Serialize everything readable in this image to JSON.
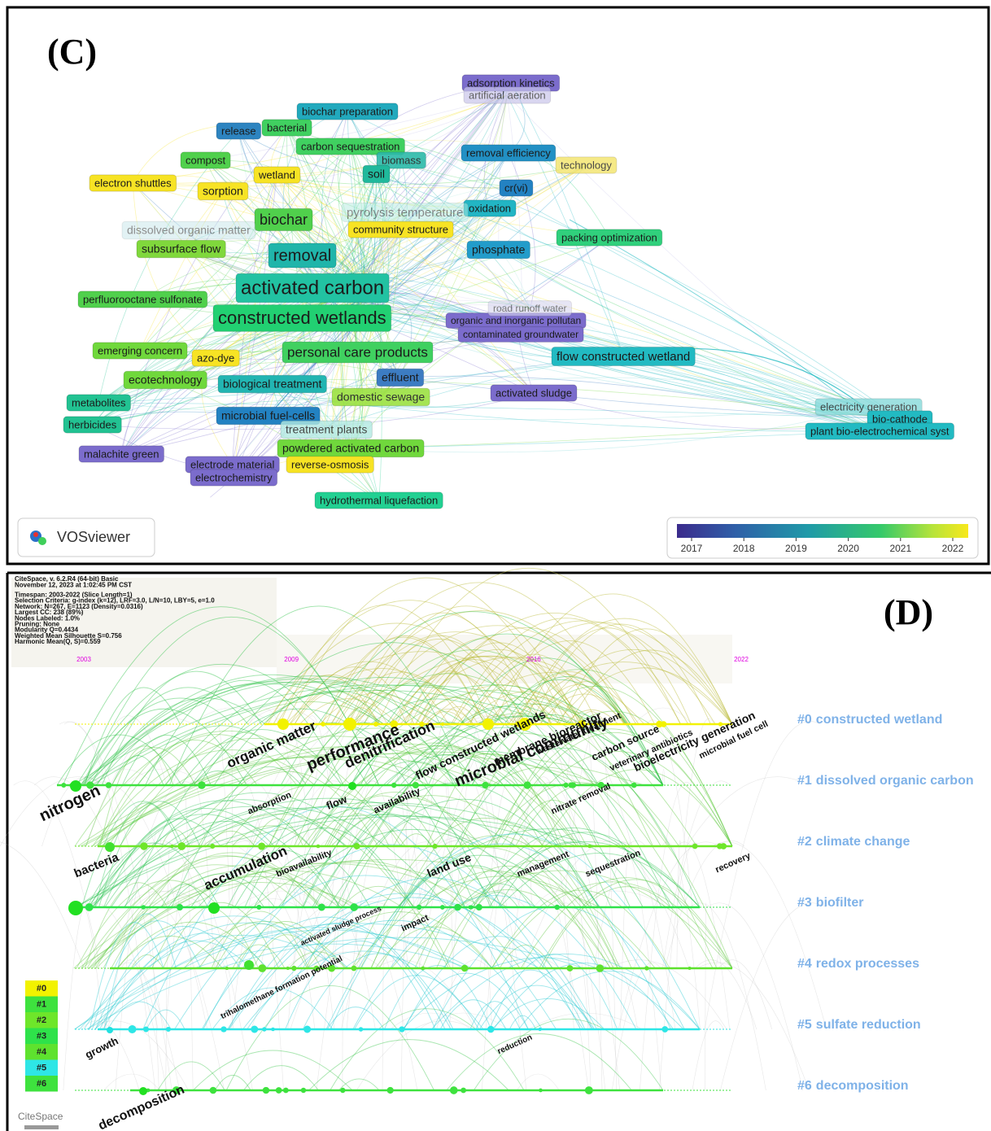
{
  "panel_c": {
    "label": "(C)",
    "logo": "VOSviewer",
    "nodes": [
      {
        "label": "adsorption kinetics",
        "color": "#7b6ccc"
      },
      {
        "label": "artificial aeration",
        "color": "#c9c6ea"
      },
      {
        "label": "biochar preparation",
        "color": "#22a9bd"
      },
      {
        "label": "release",
        "color": "#2d84c0"
      },
      {
        "label": "bacterial",
        "color": "#40d060"
      },
      {
        "label": "carbon sequestration",
        "color": "#40d060"
      },
      {
        "label": "removal efficiency",
        "color": "#2290c4"
      },
      {
        "label": "biomass",
        "color": "#2cbaa9"
      },
      {
        "label": "technology",
        "color": "#f3e46a"
      },
      {
        "label": "compost",
        "color": "#50d04c"
      },
      {
        "label": "wetland",
        "color": "#f7e324"
      },
      {
        "label": "soil",
        "color": "#20b99c"
      },
      {
        "label": "electron shuttles",
        "color": "#f7e324"
      },
      {
        "label": "sorption",
        "color": "#f7e324"
      },
      {
        "label": "cr(vi)",
        "color": "#2382c2"
      },
      {
        "label": "oxidation",
        "color": "#22b5c4"
      },
      {
        "label": "biochar",
        "color": "#50d04c"
      },
      {
        "label": "community structure",
        "color": "#f7e324"
      },
      {
        "label": "subsurface flow",
        "color": "#80d83c"
      },
      {
        "label": "packing optimization",
        "color": "#30d07c"
      },
      {
        "label": "removal",
        "color": "#20b5aa"
      },
      {
        "label": "phosphate",
        "color": "#229cca"
      },
      {
        "label": "activated carbon",
        "color": "#22c2a2"
      },
      {
        "label": "perfluorooctane sulfonate",
        "color": "#50d04c"
      },
      {
        "label": "constructed wetlands",
        "color": "#22d072"
      },
      {
        "label": "organic and inorganic pollutan",
        "color": "#7b6ccc"
      },
      {
        "label": "contaminated groundwater",
        "color": "#7b6ccc"
      },
      {
        "label": "emerging concern",
        "color": "#70d83c"
      },
      {
        "label": "azo-dye",
        "color": "#f7e324"
      },
      {
        "label": "personal care products",
        "color": "#40d060"
      },
      {
        "label": "flow constructed wetland",
        "color": "#22bac2"
      },
      {
        "label": "ecotechnology",
        "color": "#70d83c"
      },
      {
        "label": "biological treatment",
        "color": "#22b5b2"
      },
      {
        "label": "effluent",
        "color": "#3c7cc2"
      },
      {
        "label": "activated sludge",
        "color": "#7b6ccc"
      },
      {
        "label": "domestic sewage",
        "color": "#9ce242"
      },
      {
        "label": "metabolites",
        "color": "#22c292"
      },
      {
        "label": "herbicides",
        "color": "#22c292"
      },
      {
        "label": "microbial fuel-cells",
        "color": "#2382c2"
      },
      {
        "label": "treatment plants",
        "color": "#b2e9e2"
      },
      {
        "label": "electricity generation",
        "color": "#86dada"
      },
      {
        "label": "bio-cathode",
        "color": "#22bac2"
      },
      {
        "label": "plant bio-electrochemical syst",
        "color": "#22bac2"
      },
      {
        "label": "malachite green",
        "color": "#7b6ccc"
      },
      {
        "label": "powdered activated carbon",
        "color": "#70d83c"
      },
      {
        "label": "electrode material",
        "color": "#7b6ccc"
      },
      {
        "label": "reverse-osmosis",
        "color": "#f7e324"
      },
      {
        "label": "electrochemistry",
        "color": "#7b6ccc"
      },
      {
        "label": "hydrothermal liquefaction",
        "color": "#22d092"
      },
      {
        "label": "road runoff water",
        "color": "#d6d4ee"
      },
      {
        "label": "pyrolysis temperature",
        "color": "#b4ebe0"
      },
      {
        "label": "dissolved organic matter",
        "color": "#c6e6ea"
      }
    ],
    "colorbar": {
      "ticks": [
        2017,
        2018,
        2019,
        2020,
        2021,
        2022
      ]
    }
  },
  "panel_d": {
    "label": "(D)",
    "logo": "CiteSpace",
    "info": [
      "CiteSpace, v. 6.2.R4 (64-bit) Basic",
      "November 12, 2023 at 1:02:45 PM CST",
      "Timespan: 2003-2022 (Slice Length=1)",
      "Selection Criteria: g-index (k=12), LRF=3.0, L/N=10, LBY=5, e=1.0",
      "Network: N=267, E=1123 (Density=0.0316)",
      "Largest CC: 238 (89%)",
      "Nodes Labeled: 1.0%",
      "Pruning: None",
      "Modularity Q=0.4434",
      "Weighted Mean Silhouette S=0.756",
      "Harmonic Mean(Q, S)=0.559"
    ],
    "years": [
      2003,
      2009,
      2016,
      2022
    ],
    "clusters": [
      {
        "id": "#0",
        "name": "constructed wetland",
        "color": "#f2f200"
      },
      {
        "id": "#1",
        "name": "dissolved organic carbon",
        "color": "#3ee23e"
      },
      {
        "id": "#2",
        "name": "climate change",
        "color": "#6ee62a"
      },
      {
        "id": "#3",
        "name": "biofilter",
        "color": "#2ee24a"
      },
      {
        "id": "#4",
        "name": "redox processes",
        "color": "#5ee22e"
      },
      {
        "id": "#5",
        "name": "sulfate reduction",
        "color": "#2ee6e6"
      },
      {
        "id": "#6",
        "name": "decomposition",
        "color": "#3ee23e"
      }
    ],
    "keywords": [
      "nitrogen",
      "organic matter",
      "performance",
      "denitrification",
      "flow constructed wetlands",
      "microbial community",
      "membrane bioreactor",
      "wastewater treatment",
      "carbon source",
      "veterinary antibiotics",
      "bioelectricity generation",
      "microbial fuel cell",
      "absorption",
      "flow",
      "availability",
      "nitrate removal",
      "bacteria",
      "accumulation",
      "bioavailability",
      "land use",
      "management",
      "sequestration",
      "recovery",
      "activated sludge process",
      "impact",
      "trihalomethane formation potential",
      "growth",
      "reduction",
      "decomposition"
    ]
  }
}
